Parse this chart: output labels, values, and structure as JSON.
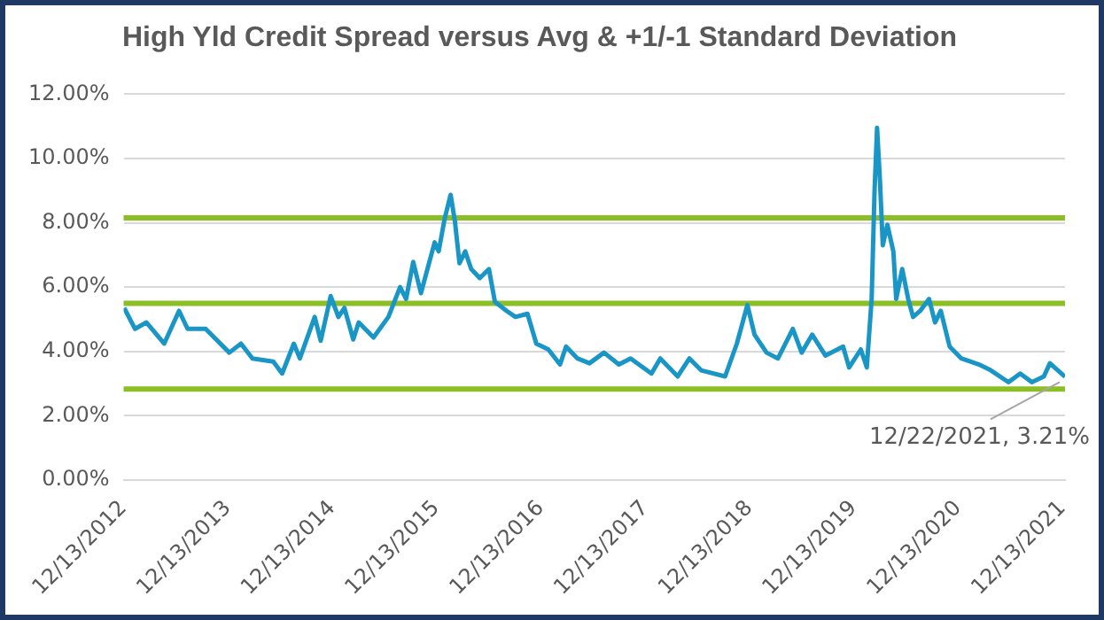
{
  "chart_data": {
    "type": "line",
    "title": "High Yld Credit Spread versus Avg & +1/-1 Standard Deviation",
    "x": [
      "2012-12-15",
      "2013-01-22",
      "2013-03-03",
      "2013-05-04",
      "2013-06-25",
      "2013-07-25",
      "2013-09-26",
      "2013-12-18",
      "2014-01-28",
      "2014-03-09",
      "2014-05-21",
      "2014-06-21",
      "2014-08-01",
      "2014-08-22",
      "2014-10-13",
      "2014-11-03",
      "2014-12-08",
      "2015-01-04",
      "2015-01-25",
      "2015-02-25",
      "2015-03-16",
      "2015-05-07",
      "2015-06-28",
      "2015-08-08",
      "2015-08-29",
      "2015-09-23",
      "2015-10-20",
      "2015-12-07",
      "2015-12-21",
      "2016-01-11",
      "2016-02-01",
      "2016-02-16",
      "2016-03-03",
      "2016-03-23",
      "2016-04-13",
      "2016-05-13",
      "2016-06-14",
      "2016-07-05",
      "2016-08-15",
      "2016-09-15",
      "2016-10-27",
      "2016-11-27",
      "2017-01-08",
      "2017-02-18",
      "2017-03-11",
      "2017-04-20",
      "2017-06-01",
      "2017-07-22",
      "2017-09-12",
      "2017-10-23",
      "2018-01-04",
      "2018-02-04",
      "2018-04-06",
      "2018-05-17",
      "2018-06-27",
      "2018-09-19",
      "2018-10-30",
      "2018-12-06",
      "2018-12-31",
      "2019-02-11",
      "2019-03-23",
      "2019-05-14",
      "2019-06-14",
      "2019-07-21",
      "2019-09-05",
      "2019-11-06",
      "2019-11-27",
      "2020-01-07",
      "2020-01-28",
      "2020-02-14",
      "2020-02-24",
      "2020-03-04",
      "2020-03-14",
      "2020-03-24",
      "2020-04-09",
      "2020-04-30",
      "2020-05-10",
      "2020-05-31",
      "2020-06-21",
      "2020-07-08",
      "2020-08-02",
      "2020-09-02",
      "2020-09-23",
      "2020-10-13",
      "2020-11-13",
      "2020-12-24",
      "2021-02-24",
      "2021-04-06",
      "2021-06-07",
      "2021-07-18",
      "2021-08-28",
      "2021-10-09",
      "2021-10-30",
      "2021-12-22"
    ],
    "series": [
      {
        "color": "#1a96c6",
        "values": [
          5.35,
          4.7,
          4.9,
          4.24,
          5.26,
          4.7,
          4.7,
          3.96,
          4.24,
          3.78,
          3.68,
          3.31,
          4.24,
          3.78,
          5.07,
          4.33,
          5.72,
          5.07,
          5.35,
          4.37,
          4.9,
          4.43,
          5.07,
          6.0,
          5.63,
          6.78,
          5.81,
          7.39,
          7.11,
          8.13,
          8.87,
          8.04,
          6.74,
          7.11,
          6.56,
          6.28,
          6.56,
          5.54,
          5.26,
          5.07,
          5.17,
          4.24,
          4.06,
          3.59,
          4.15,
          3.78,
          3.63,
          3.96,
          3.59,
          3.78,
          3.31,
          3.78,
          3.22,
          3.78,
          3.41,
          3.22,
          4.24,
          5.44,
          4.52,
          3.96,
          3.78,
          4.7,
          3.96,
          4.52,
          3.87,
          4.15,
          3.5,
          4.06,
          3.5,
          5.63,
          8.96,
          10.96,
          9.33,
          7.3,
          7.94,
          7.11,
          5.63,
          6.56,
          5.63,
          5.07,
          5.26,
          5.63,
          4.9,
          5.26,
          4.15,
          3.78,
          3.59,
          3.41,
          3.04,
          3.31,
          3.04,
          3.22,
          3.63,
          3.21
        ]
      }
    ],
    "xlim": [
      "2012-12-13",
      "2021-12-22"
    ],
    "xticks": [
      {
        "value": "2012-12-13",
        "label": "12/13/2012"
      },
      {
        "value": "2013-12-13",
        "label": "12/13/2013"
      },
      {
        "value": "2014-12-13",
        "label": "12/13/2014"
      },
      {
        "value": "2015-12-13",
        "label": "12/13/2015"
      },
      {
        "value": "2016-12-13",
        "label": "12/13/2016"
      },
      {
        "value": "2017-12-13",
        "label": "12/13/2017"
      },
      {
        "value": "2018-12-13",
        "label": "12/13/2018"
      },
      {
        "value": "2019-12-13",
        "label": "12/13/2019"
      },
      {
        "value": "2020-12-13",
        "label": "12/13/2020"
      },
      {
        "value": "2021-12-13",
        "label": "12/13/2021"
      }
    ],
    "ylim": [
      0,
      12
    ],
    "yticks": [
      {
        "value": 0,
        "label": "0.00%"
      },
      {
        "value": 2,
        "label": "2.00%"
      },
      {
        "value": 4,
        "label": "4.00%"
      },
      {
        "value": 6,
        "label": "6.00%"
      },
      {
        "value": 8,
        "label": "8.00%"
      },
      {
        "value": 10,
        "label": "10.00%"
      },
      {
        "value": 12,
        "label": "12.00%"
      }
    ],
    "ref_lines": [
      {
        "axis": "y",
        "value": 8.15,
        "color": "#8cbf26"
      },
      {
        "axis": "y",
        "value": 5.49,
        "color": "#8cbf26"
      },
      {
        "axis": "y",
        "value": 2.83,
        "color": "#8cbf26"
      }
    ],
    "annotations": [
      {
        "text": "12/22/2021, 3.21%",
        "x": "2021-12-22",
        "y": 3.21
      }
    ],
    "grid": "y",
    "legend": false,
    "marker": "none",
    "line_style": "solid"
  }
}
